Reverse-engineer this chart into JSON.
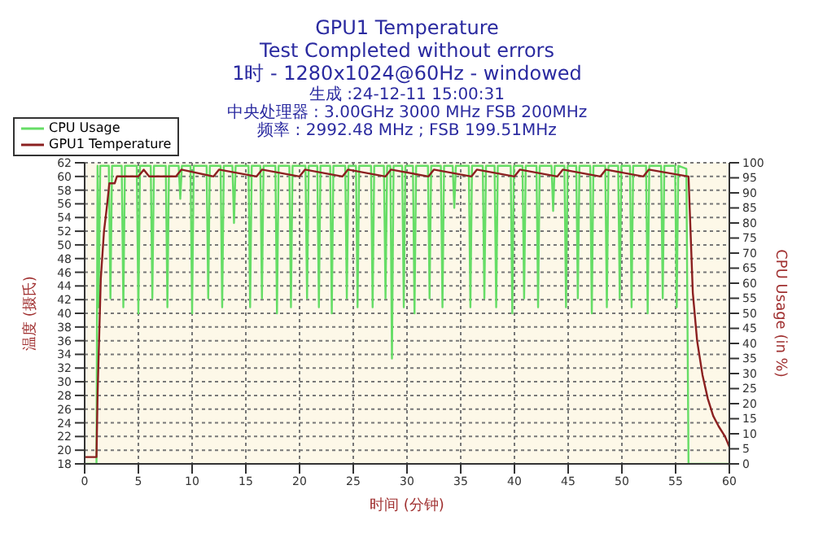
{
  "chart_data": {
    "type": "line",
    "title": "GPU1 Temperature",
    "subtitle": "Test Completed without errors",
    "annotations": [
      "1时 - 1280x1024@60Hz - windowed",
      "生成 :24-12-11 15:00:31",
      "中央处理器 : 3.00GHz 3000 MHz FSB 200MHz",
      "频率 : 2992.48 MHz ; FSB 199.51MHz"
    ],
    "xlabel": "时间 (分钟)",
    "ylabel": "温度 (摄氏)",
    "y2label": "CPU Usage (in %)",
    "xlim": [
      0,
      60
    ],
    "xticks": [
      0,
      5,
      10,
      15,
      20,
      25,
      30,
      35,
      40,
      45,
      50,
      55,
      60
    ],
    "ylim": [
      18,
      62
    ],
    "yticks": [
      18,
      20,
      22,
      24,
      26,
      28,
      30,
      32,
      34,
      36,
      38,
      40,
      42,
      44,
      46,
      48,
      50,
      52,
      54,
      56,
      58,
      60,
      62
    ],
    "y2lim": [
      0,
      100
    ],
    "y2ticks": [
      0,
      5,
      10,
      15,
      20,
      25,
      30,
      35,
      40,
      45,
      50,
      55,
      60,
      65,
      70,
      75,
      80,
      85,
      90,
      95,
      100
    ],
    "grid": true,
    "legend": "top left",
    "marker": "none",
    "line_style": "solid",
    "series": [
      {
        "name": "CPU Usage",
        "color": "#66dd66",
        "axis": "y2",
        "x": [
          0,
          1.1,
          1.2,
          1.3,
          1.45,
          2.25,
          2.4,
          2.55,
          3.45,
          3.6,
          3.75,
          4.85,
          5.0,
          5.15,
          6.15,
          6.3,
          6.45,
          7.55,
          7.7,
          7.85,
          8.75,
          8.9,
          9.05,
          9.85,
          10.0,
          10.15,
          11.35,
          11.5,
          11.65,
          12.65,
          12.8,
          12.95,
          13.75,
          13.9,
          14.05,
          15.25,
          15.4,
          15.55,
          16.35,
          16.5,
          16.65,
          17.75,
          17.9,
          18.05,
          19.05,
          19.2,
          19.35,
          20.55,
          20.7,
          20.85,
          21.65,
          21.8,
          21.95,
          22.85,
          23.0,
          23.15,
          24.25,
          24.4,
          24.55,
          25.25,
          25.4,
          25.55,
          26.65,
          26.8,
          26.95,
          27.85,
          28.0,
          28.15,
          28.45,
          28.6,
          28.75,
          29.55,
          29.7,
          29.85,
          30.55,
          30.7,
          30.85,
          31.95,
          32.1,
          32.25,
          33.15,
          33.3,
          33.45,
          34.25,
          34.4,
          34.55,
          35.75,
          35.9,
          36.05,
          37.05,
          37.2,
          37.35,
          38.15,
          38.3,
          38.45,
          39.65,
          39.8,
          39.95,
          40.75,
          40.9,
          41.05,
          42.05,
          42.2,
          42.35,
          43.45,
          43.6,
          43.75,
          44.65,
          44.8,
          44.95,
          45.75,
          45.9,
          46.05,
          47.05,
          47.2,
          47.35,
          48.45,
          48.6,
          48.75,
          49.65,
          49.8,
          49.95,
          50.75,
          50.9,
          51.05,
          52.25,
          52.4,
          52.55,
          53.65,
          53.8,
          53.95,
          54.95,
          55.1,
          55.25,
          56.0,
          56.2,
          60
        ],
        "values": [
          0,
          0,
          99,
          52,
          99,
          99,
          55,
          99,
          99,
          52,
          99,
          99,
          50,
          99,
          99,
          55,
          99,
          99,
          52,
          99,
          99,
          88,
          99,
          99,
          50,
          99,
          99,
          55,
          99,
          99,
          52,
          99,
          99,
          80,
          99,
          99,
          52,
          99,
          99,
          55,
          99,
          99,
          50,
          99,
          99,
          52,
          99,
          99,
          55,
          99,
          99,
          52,
          99,
          99,
          50,
          99,
          99,
          55,
          99,
          99,
          52,
          99,
          99,
          52,
          99,
          99,
          55,
          99,
          99,
          35,
          99,
          99,
          52,
          99,
          99,
          50,
          99,
          99,
          55,
          99,
          99,
          52,
          99,
          99,
          85,
          99,
          99,
          52,
          99,
          99,
          55,
          99,
          99,
          52,
          99,
          99,
          50,
          99,
          99,
          55,
          99,
          99,
          52,
          99,
          99,
          84,
          99,
          99,
          52,
          99,
          99,
          55,
          99,
          99,
          50,
          99,
          99,
          52,
          99,
          99,
          55,
          99,
          99,
          52,
          99,
          99,
          50,
          99,
          99,
          55,
          99,
          99,
          52,
          99,
          98,
          0,
          0
        ]
      },
      {
        "name": "GPU1 Temperature",
        "color": "#8b2020",
        "x": [
          0,
          1.1,
          1.2,
          1.5,
          1.8,
          2.1,
          2.3,
          2.8,
          3.0,
          5.0,
          5.5,
          6.0,
          8.5,
          9.0,
          12.0,
          12.5,
          16.0,
          16.5,
          20.0,
          20.5,
          24.0,
          24.5,
          28.0,
          28.5,
          32.0,
          32.5,
          36.0,
          36.5,
          40.0,
          40.5,
          44.0,
          44.5,
          48.0,
          48.5,
          52.0,
          52.5,
          56.2,
          56.6,
          57.0,
          57.5,
          58.0,
          58.5,
          59.0,
          59.6,
          60
        ],
        "values": [
          19,
          19,
          28,
          45,
          52,
          56,
          59,
          59,
          60,
          60,
          61,
          60,
          60,
          61,
          60,
          61,
          60,
          61,
          60,
          61,
          60,
          61,
          60,
          61,
          60,
          61,
          60,
          61,
          60,
          61,
          60,
          61,
          60,
          61,
          60,
          61,
          60,
          43,
          36,
          31,
          27.5,
          25,
          23.5,
          22,
          20.5
        ]
      }
    ]
  }
}
